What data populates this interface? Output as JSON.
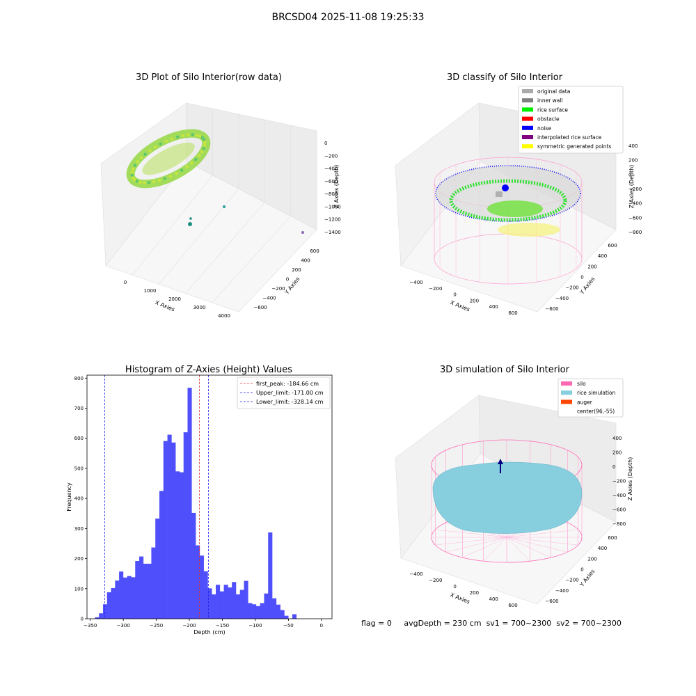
{
  "figure_title": "BRCSD04 2025-11-08 19:25:33",
  "footer": {
    "flag": "flag = 0",
    "avg_depth": "avgDepth = 230 cm",
    "sv1": "sv1 = 700~2300",
    "sv2": "sv2 = 700~2300"
  },
  "colors": {
    "hist_bar": "#4f4ffb",
    "first_peak_line": "#e03030",
    "limit_line": "#2020ee",
    "silo": "#ff69b4",
    "rice_simulation": "#87cedf",
    "auger": "#ff4500",
    "noise": "#0000ff",
    "rice_surface": "#00ee00",
    "pane_fill": "#f2f2f2"
  },
  "chart_data": [
    {
      "type": "scatter",
      "title": "3D Plot of Silo Interior(row data)",
      "xlabel": "X Axies",
      "ylabel": "Y Axies",
      "zlabel": "Z Axies (Depth)",
      "x_ticks": [
        "0",
        "1000",
        "2000",
        "3000",
        "4000"
      ],
      "y_ticks": [
        "600",
        "400",
        "200",
        "0",
        "−200",
        "−400",
        "−600"
      ],
      "z_ticks": [
        "0",
        "−200",
        "−400",
        "−600",
        "−800",
        "−1000",
        "−1200",
        "−1400"
      ],
      "note_points": [
        {
          "x": 3900,
          "y": -100,
          "z": -1400
        },
        {
          "x": 2600,
          "y": 600,
          "z": -1000
        },
        {
          "x": 1700,
          "y": 300,
          "z": -1250
        }
      ]
    },
    {
      "type": "scatter",
      "title": "3D classify of Silo Interior",
      "xlabel": "X Axies",
      "ylabel": "Y Axies",
      "zlabel": "Z Axies (Depth)",
      "x_ticks": [
        "−400",
        "−200",
        "0",
        "200",
        "400",
        "600"
      ],
      "y_ticks": [
        "600",
        "400",
        "200",
        "0",
        "−200",
        "−400",
        "−600"
      ],
      "z_ticks": [
        "400",
        "200",
        "0",
        "−200",
        "−400",
        "−600",
        "−800"
      ],
      "legend": [
        {
          "label": "original data",
          "color": "#aaaaaa"
        },
        {
          "label": "inner wall",
          "color": "#808080"
        },
        {
          "label": "rice surface",
          "color": "#00ee00"
        },
        {
          "label": "obstacle",
          "color": "#ff0000"
        },
        {
          "label": "noise",
          "color": "#0000ff"
        },
        {
          "label": "interpolated rice surface",
          "color": "#800080"
        },
        {
          "label": "symmetric generated points",
          "color": "#ffff00"
        }
      ]
    },
    {
      "type": "bar",
      "title": "Histogram of Z-Axies (Height) Values",
      "xlabel": "Depth (cm)",
      "ylabel": "Frequency",
      "xlim": [
        -355,
        16
      ],
      "ylim": [
        0,
        810
      ],
      "x_ticks": [
        -350,
        -300,
        -250,
        -200,
        -150,
        -100,
        -50,
        0
      ],
      "y_ticks": [
        0,
        100,
        200,
        300,
        400,
        500,
        600,
        700,
        800
      ],
      "bin_start": -343,
      "bin_width": 6.1,
      "values": [
        5,
        18,
        48,
        88,
        102,
        127,
        157,
        137,
        142,
        138,
        192,
        207,
        183,
        183,
        237,
        333,
        425,
        591,
        612,
        586,
        490,
        487,
        620,
        768,
        352,
        244,
        210,
        158,
        101,
        81,
        113,
        91,
        113,
        104,
        122,
        81,
        96,
        126,
        52,
        48,
        42,
        52,
        84,
        287,
        68,
        47,
        29,
        10,
        0,
        15
      ],
      "vlines": [
        {
          "label": "first_peak: -184.66 cm",
          "x": -184.66,
          "color": "#e03030"
        },
        {
          "label": "Upper_limit: -171.00 cm",
          "x": -171.0,
          "color": "#2020ee"
        },
        {
          "label": "Lower_limit: -328.14 cm",
          "x": -328.14,
          "color": "#2020ee"
        }
      ]
    },
    {
      "type": "scatter",
      "title": "3D simulation of Silo Interior",
      "xlabel": "X Axies",
      "ylabel": "Y Axies",
      "zlabel": "Z Axies (Depth)",
      "x_ticks": [
        "−400",
        "−200",
        "0",
        "200",
        "400",
        "600"
      ],
      "y_ticks": [
        "600",
        "400",
        "200",
        "0",
        "−200",
        "−400",
        "−600"
      ],
      "z_ticks": [
        "400",
        "200",
        "0",
        "−200",
        "−400",
        "−600",
        "−800"
      ],
      "legend": [
        {
          "label": "silo",
          "color": "#ff69b4"
        },
        {
          "label": "rice simulation",
          "color": "#87cedf"
        },
        {
          "label": "auger",
          "color": "#ff4500"
        },
        {
          "label": "center(96,-55)",
          "color": ""
        }
      ]
    }
  ]
}
